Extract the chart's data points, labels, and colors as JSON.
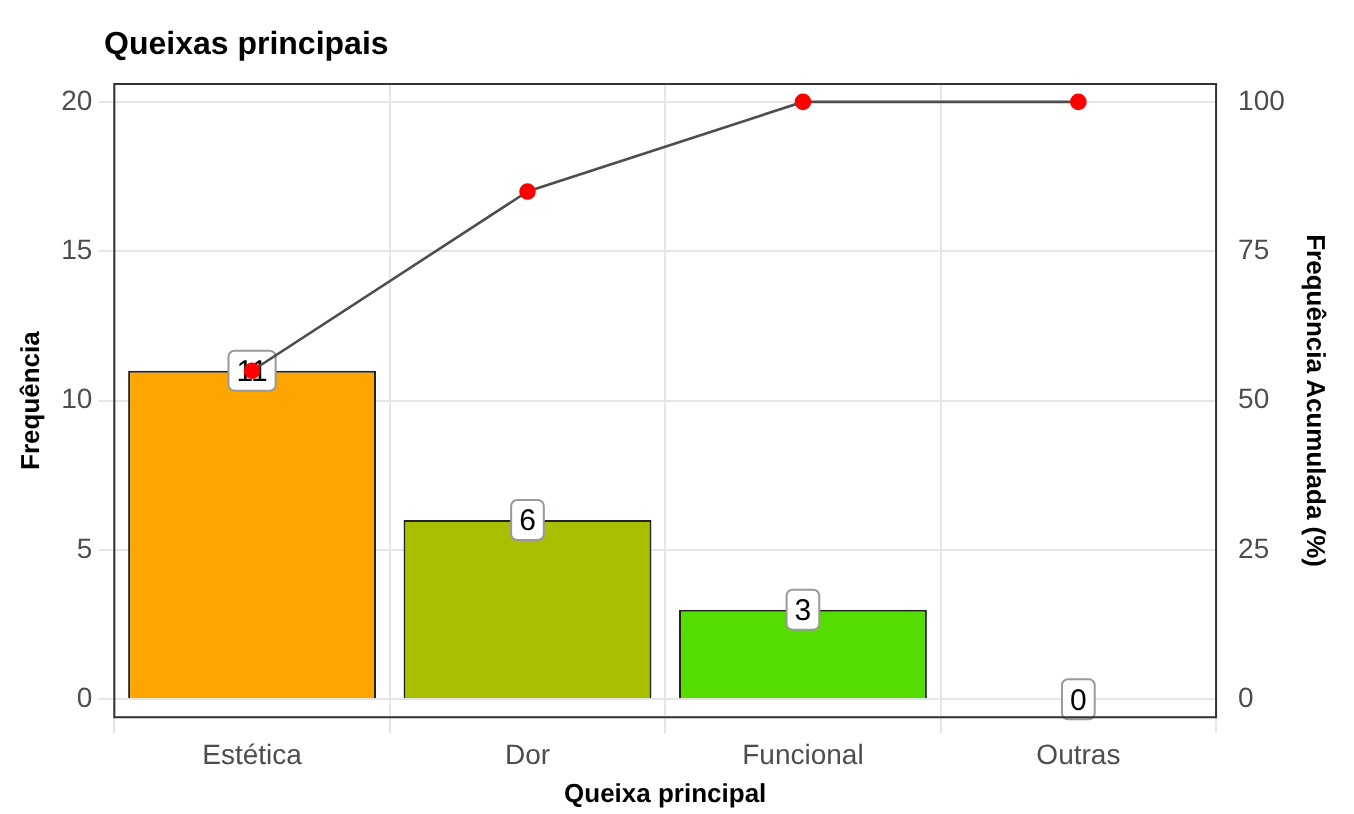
{
  "chart_data": {
    "type": "bar",
    "title": "Queixas principais",
    "xlabel": "Queixa principal",
    "ylabel": "Frequência",
    "y2label": "Frequência Acumulada (%)",
    "categories": [
      "Estética",
      "Dor",
      "Funcional",
      "Outras"
    ],
    "series": [
      {
        "colors": [
          "#ffa500",
          "#a8c000",
          "#55dd00",
          "#888888"
        ],
        "values": [
          11,
          6,
          3,
          0
        ],
        "value_labels": [
          "11",
          "6",
          "3",
          "0"
        ]
      },
      {
        "type": "line",
        "axis": "y2",
        "color": "#4d4d4d",
        "colors": [
          "#ff0000",
          "#ff0000",
          "#ff0000",
          "#ff0000"
        ],
        "values": [
          55,
          85,
          100,
          100
        ]
      }
    ],
    "ylim": [
      -0.6,
      20.6
    ],
    "yticks": [
      0,
      5,
      10,
      15,
      20
    ],
    "y2lim": [
      -3,
      103
    ],
    "y2ticks": [
      0,
      25,
      50,
      75,
      100
    ],
    "grid": true,
    "legend": false,
    "marker": "circle"
  }
}
